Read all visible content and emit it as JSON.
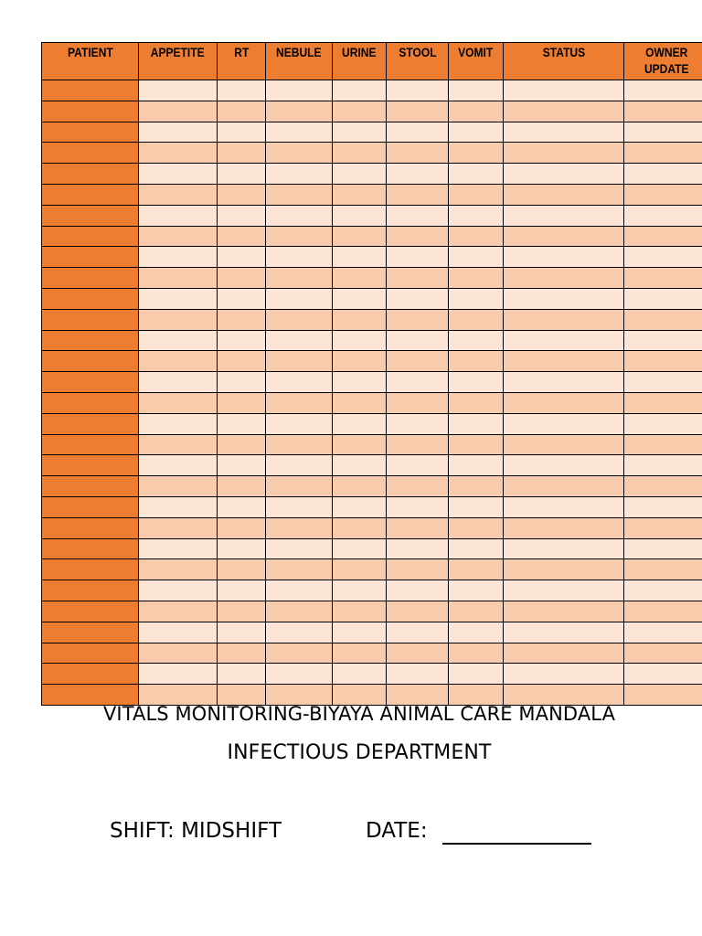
{
  "table": {
    "headers": [
      "PATIENT",
      "APPETITE",
      "RT",
      "NEBULE",
      "URINE",
      "STOOL",
      "VOMIT",
      "STATUS",
      "OWNER\nUPDATE"
    ],
    "row_count": 30,
    "colors": {
      "header": "#ed7d31",
      "patient_column": "#ed7d31",
      "row_light": "#fce4d6",
      "row_dark": "#f8cbad",
      "border": "#000000"
    }
  },
  "title": "VITALS MONITORING-BIYAYA ANIMAL CARE MANDALA",
  "subtitle": "INFECTIOUS DEPARTMENT",
  "shift": {
    "label": "SHIFT: MIDSHIFT"
  },
  "date": {
    "label": "DATE:",
    "value": ""
  }
}
